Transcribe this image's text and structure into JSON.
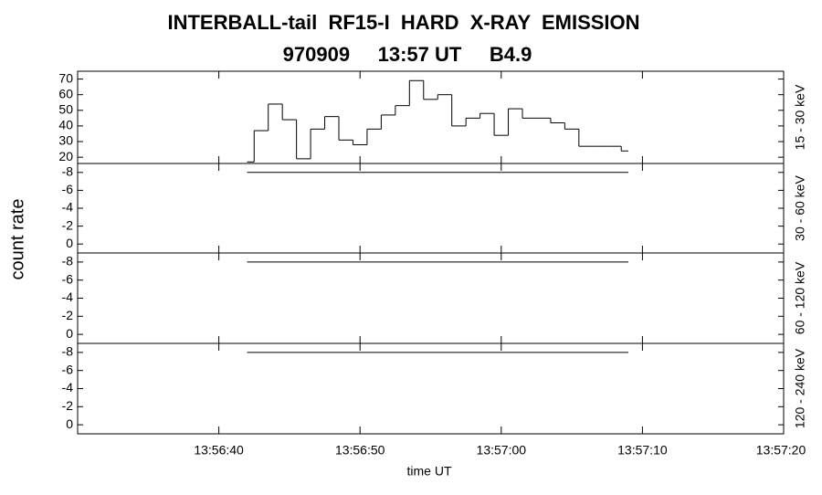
{
  "chart_data": {
    "type": "line",
    "title": "INTERBALL-tail  RF15-I  HARD  X-RAY  EMISSION",
    "subtitle": "970909     13:57 UT     B4.9",
    "xlabel": "time UT",
    "ylabel": "count rate",
    "xlim": [
      50190,
      50240
    ],
    "xticks": [
      {
        "value": 50200,
        "label": "13:56:40"
      },
      {
        "value": 50210,
        "label": "13:56:50"
      },
      {
        "value": 50220,
        "label": "13:57:00"
      },
      {
        "value": 50230,
        "label": "13:57:10"
      },
      {
        "value": 50240,
        "label": "13:57:20"
      }
    ],
    "color": "#000000",
    "panels": [
      {
        "label": "15 - 30 keV",
        "ylim": [
          16,
          75
        ],
        "yticks": [
          20,
          30,
          40,
          50,
          60,
          70
        ],
        "bins": [
          50202,
          50202.5,
          50203.5,
          50204.5,
          50205.5,
          50206.5,
          50207.5,
          50208.5,
          50209.5,
          50210.5,
          50211.5,
          50212.5,
          50213.5,
          50214.5,
          50215.5,
          50216.5,
          50217.5,
          50218.5,
          50219.5,
          50220.5,
          50221.5,
          50222.5,
          50223.5,
          50224.5,
          50225.5,
          50226.5,
          50227.5,
          50228.5,
          50229
        ],
        "values": [
          17,
          37,
          54,
          44,
          19,
          38,
          46,
          31,
          28,
          38,
          47,
          53,
          69,
          57,
          60,
          40,
          45,
          48,
          34,
          51,
          45,
          45,
          42,
          38,
          27,
          27,
          27,
          24
        ]
      },
      {
        "label": "30 - 60 keV",
        "ylim": [
          1,
          -9
        ],
        "yticks": [
          0,
          -2,
          -4,
          -6,
          -8
        ],
        "x": [
          50202,
          50229
        ],
        "values": [
          -8,
          -8
        ]
      },
      {
        "label": "60 - 120 keV",
        "ylim": [
          1,
          -9
        ],
        "yticks": [
          0,
          -2,
          -4,
          -6,
          -8
        ],
        "x": [
          50202,
          50229
        ],
        "values": [
          -8,
          -8
        ]
      },
      {
        "label": "120 - 240 keV",
        "ylim": [
          1,
          -9
        ],
        "yticks": [
          0,
          -2,
          -4,
          -6,
          -8
        ],
        "x": [
          50202,
          50229
        ],
        "values": [
          -8,
          -8
        ]
      }
    ]
  }
}
